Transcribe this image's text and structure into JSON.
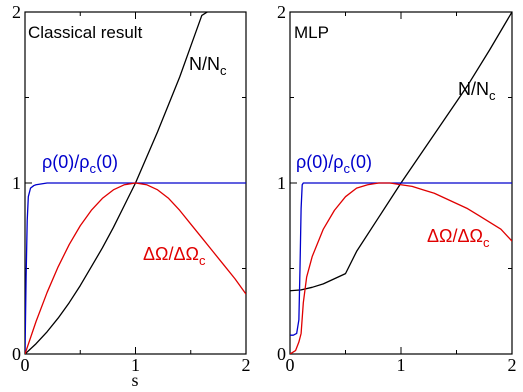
{
  "chart_data": [
    {
      "type": "line",
      "title": "Classical result",
      "xlabel": "s",
      "ylabel": "",
      "xlim": [
        0,
        2
      ],
      "ylim": [
        0,
        2
      ],
      "xticks": [
        "0",
        "1",
        "2"
      ],
      "yticks": [
        "0",
        "1",
        "2"
      ],
      "grid": false,
      "series": [
        {
          "name": "N/N",
          "name_sub": "c",
          "color": "#000000",
          "x": [
            0,
            0.1,
            0.2,
            0.3,
            0.4,
            0.5,
            0.6,
            0.7,
            0.8,
            0.9,
            1.0,
            1.1,
            1.2,
            1.3,
            1.4,
            1.5,
            1.6,
            1.65
          ],
          "y": [
            0,
            0.06,
            0.13,
            0.21,
            0.3,
            0.4,
            0.51,
            0.62,
            0.74,
            0.87,
            1.0,
            1.15,
            1.3,
            1.46,
            1.62,
            1.8,
            1.98,
            2.0
          ]
        },
        {
          "name": "ρ(0)/ρ",
          "name_sub": "c",
          "name_tail": "(0)",
          "color": "#0000cc",
          "x": [
            0,
            0.01,
            0.02,
            0.03,
            0.05,
            0.08,
            0.1,
            0.15,
            0.2,
            0.5,
            1.0,
            1.5,
            2.0
          ],
          "y": [
            0,
            0.45,
            0.78,
            0.92,
            0.97,
            0.985,
            0.99,
            0.995,
            1.0,
            1.0,
            1.0,
            1.0,
            1.0
          ]
        },
        {
          "name": "ΔΩ/ΔΩ",
          "name_sub": "c",
          "color": "#e00000",
          "x": [
            0,
            0.1,
            0.2,
            0.3,
            0.4,
            0.5,
            0.6,
            0.7,
            0.8,
            0.9,
            1.0,
            1.1,
            1.2,
            1.3,
            1.4,
            1.5,
            1.6,
            1.7,
            1.8,
            1.9,
            2.0
          ],
          "y": [
            0,
            0.19,
            0.36,
            0.51,
            0.64,
            0.75,
            0.84,
            0.91,
            0.96,
            0.99,
            1.0,
            0.99,
            0.96,
            0.91,
            0.84,
            0.76,
            0.68,
            0.6,
            0.52,
            0.44,
            0.35
          ]
        }
      ]
    },
    {
      "type": "line",
      "title": "MLP",
      "xlabel": "",
      "ylabel": "",
      "xlim": [
        0,
        2
      ],
      "ylim": [
        0,
        2
      ],
      "xticks": [
        "0",
        "1",
        "2"
      ],
      "yticks": [
        "0",
        "1",
        "2"
      ],
      "grid": false,
      "series": [
        {
          "name": "N/N",
          "name_sub": "c",
          "color": "#000000",
          "x": [
            0,
            0.1,
            0.2,
            0.3,
            0.4,
            0.5,
            0.6,
            0.8,
            1.0,
            1.2,
            1.4,
            1.6,
            1.8,
            2.0
          ],
          "y": [
            0.37,
            0.375,
            0.39,
            0.41,
            0.44,
            0.47,
            0.6,
            0.8,
            1.0,
            1.19,
            1.38,
            1.57,
            1.78,
            2.0
          ]
        },
        {
          "name": "ρ(0)/ρ",
          "name_sub": "c",
          "name_tail": "(0)",
          "color": "#0000cc",
          "x": [
            0,
            0.03,
            0.06,
            0.08,
            0.09,
            0.1,
            0.11,
            0.12,
            0.15,
            0.2,
            0.5,
            1.0,
            1.5,
            2.0
          ],
          "y": [
            0.11,
            0.11,
            0.12,
            0.2,
            0.5,
            0.85,
            0.99,
            1.0,
            1.0,
            1.0,
            1.0,
            1.0,
            1.0,
            1.0
          ]
        },
        {
          "name": "ΔΩ/ΔΩ",
          "name_sub": "c",
          "color": "#e00000",
          "x": [
            0,
            0.05,
            0.08,
            0.1,
            0.12,
            0.15,
            0.2,
            0.3,
            0.4,
            0.5,
            0.6,
            0.7,
            0.8,
            0.9,
            1.0,
            1.1,
            1.2,
            1.3,
            1.4,
            1.5,
            1.6,
            1.7,
            1.8,
            1.9,
            2.0
          ],
          "y": [
            0.0,
            0.02,
            0.07,
            0.12,
            0.3,
            0.45,
            0.57,
            0.73,
            0.84,
            0.92,
            0.97,
            0.99,
            1.0,
            1.0,
            0.99,
            0.98,
            0.96,
            0.94,
            0.91,
            0.88,
            0.85,
            0.81,
            0.77,
            0.73,
            0.66
          ]
        }
      ]
    }
  ],
  "colors": {
    "frame": "#000000",
    "blue": "#0000cc",
    "red": "#e00000",
    "black": "#000000"
  }
}
